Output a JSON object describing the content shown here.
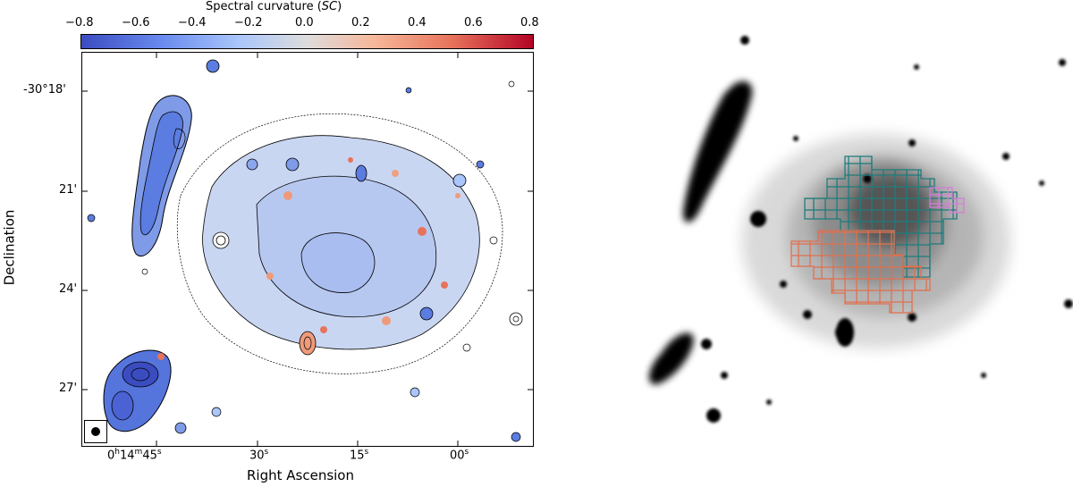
{
  "colorbar": {
    "title": "Spectral curvature (SC)",
    "title_main": "Spectral curvature (",
    "title_var": "SC",
    "title_end": ")",
    "ticks": [
      "−0.8",
      "−0.6",
      "−0.4",
      "−0.2",
      "0.0",
      "0.2",
      "0.4",
      "0.6",
      "0.8"
    ],
    "range": [
      -0.8,
      0.8
    ],
    "colormap": "coolwarm",
    "colors": [
      "#3b4cc0",
      "#dddcdc",
      "#b40426"
    ]
  },
  "left_panel": {
    "xlabel": "Right Ascension",
    "ylabel": "Declination",
    "dec_ticks": [
      "-30°18'",
      "21'",
      "24'",
      "27'"
    ],
    "ra_ticks": [
      {
        "h": "0",
        "hs": "h",
        "m": "14",
        "ms": "m",
        "s": "45",
        "ss": "s"
      },
      {
        "s": "30",
        "ss": "s"
      },
      {
        "s": "15",
        "ss": "s"
      },
      {
        "s": "00",
        "ss": "s"
      }
    ]
  },
  "right_panel": {
    "grid_colors": {
      "teal": "#1f7c7c",
      "orange": "#e0704f",
      "violet": "#d77ad8"
    }
  }
}
